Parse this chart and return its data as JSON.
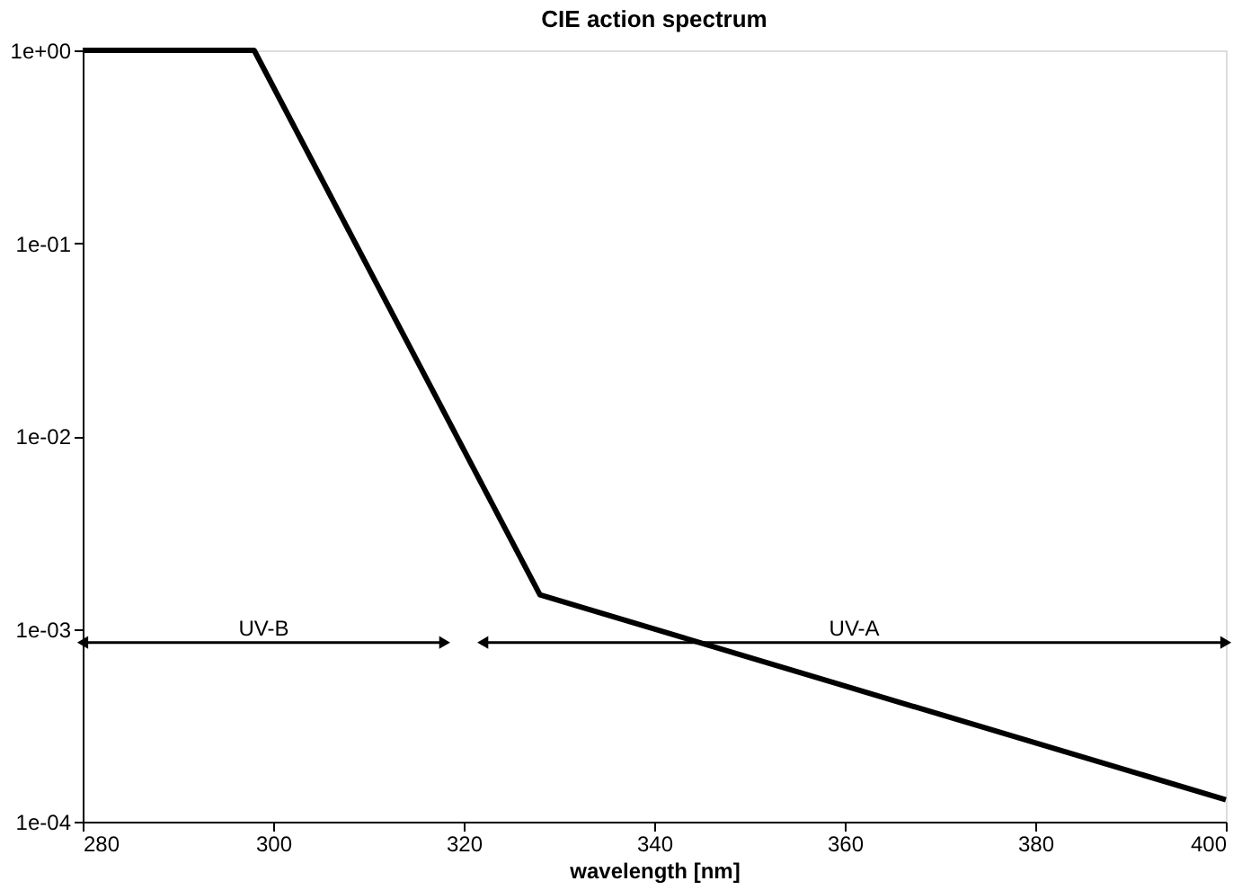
{
  "chart_data": {
    "type": "line",
    "title": "CIE action spectrum",
    "xlabel": "wavelength [nm]",
    "xlim": [
      280,
      400
    ],
    "xticks": [
      280,
      300,
      320,
      340,
      360,
      380,
      400
    ],
    "ylim": [
      0.0001,
      1
    ],
    "log": "y",
    "yticks": [
      {
        "value": 1,
        "label": "1e+00"
      },
      {
        "value": 0.1,
        "label": "1e-01"
      },
      {
        "value": 0.01,
        "label": "1e-02"
      },
      {
        "value": 0.001,
        "label": "1e-03"
      },
      {
        "value": 0.0001,
        "label": "1e-04"
      }
    ],
    "grid": false,
    "marker": "none",
    "line_style": "solid",
    "series": [
      {
        "color": "#000000",
        "x": [
          280,
          298,
          328,
          400
        ],
        "values": [
          1,
          1,
          0.0015,
          0.00013
        ]
      },
      {
        "name": "UV-B",
        "color": "#000000",
        "marker": "triangle",
        "x": [
          280,
          318
        ],
        "values": [
          0.00085,
          0.00085
        ]
      },
      {
        "name": "UV-A",
        "color": "#000000",
        "marker": "triangle",
        "x": [
          322,
          400
        ],
        "values": [
          0.00085,
          0.00085
        ]
      }
    ]
  }
}
